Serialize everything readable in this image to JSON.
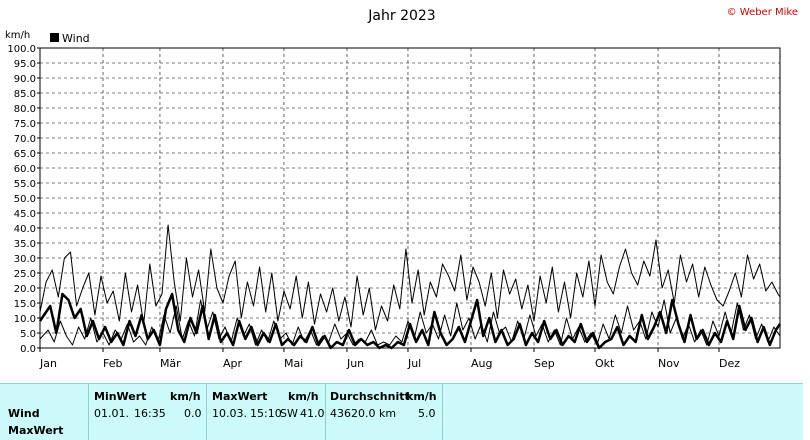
{
  "chart_data": {
    "type": "line",
    "title": "Jahr 2023",
    "credit": "© Weber Mike",
    "ylabel": "km/h",
    "ylim": [
      0,
      100
    ],
    "y_tick_labels": [
      "0.0",
      "5.0",
      "10.0",
      "15.0",
      "20.0",
      "25.0",
      "30.0",
      "35.0",
      "40.0",
      "45.0",
      "50.0",
      "55.0",
      "60.0",
      "65.0",
      "70.0",
      "75.0",
      "80.0",
      "85.0",
      "90.0",
      "95.0",
      "100.0"
    ],
    "x_tick_labels": [
      "Jan",
      "Feb",
      "Mär",
      "Apr",
      "Mai",
      "Jun",
      "Jul",
      "Aug",
      "Sep",
      "Okt",
      "Nov",
      "Dez"
    ],
    "x_tick_days": [
      1,
      32,
      60,
      91,
      121,
      152,
      182,
      213,
      244,
      274,
      305,
      335
    ],
    "xlim_days": [
      1,
      365
    ],
    "grid": true,
    "legend_position": "top-left",
    "series": [
      {
        "name": "Wind",
        "style": "thick",
        "color": "#000000",
        "x_days": [
          1,
          6,
          9,
          12,
          15,
          18,
          21,
          24,
          27,
          30,
          33,
          36,
          39,
          42,
          45,
          48,
          51,
          54,
          57,
          60,
          63,
          66,
          69,
          72,
          75,
          78,
          81,
          84,
          87,
          90,
          93,
          96,
          99,
          102,
          105,
          108,
          111,
          114,
          117,
          120,
          123,
          126,
          129,
          132,
          135,
          138,
          141,
          144,
          147,
          150,
          153,
          156,
          159,
          162,
          165,
          168,
          171,
          174,
          177,
          180,
          183,
          186,
          189,
          192,
          195,
          198,
          201,
          204,
          207,
          210,
          213,
          216,
          219,
          222,
          225,
          228,
          231,
          234,
          237,
          240,
          243,
          246,
          249,
          252,
          255,
          258,
          261,
          264,
          267,
          270,
          273,
          276,
          279,
          282,
          285,
          288,
          291,
          294,
          297,
          300,
          303,
          306,
          309,
          312,
          315,
          318,
          321,
          324,
          327,
          330,
          333,
          336,
          339,
          342,
          345,
          348,
          351,
          354,
          357,
          360,
          363,
          365
        ],
        "values": [
          9,
          14,
          5,
          18,
          16,
          10,
          13,
          4,
          9,
          3,
          7,
          2,
          5,
          1,
          9,
          4,
          11,
          3,
          6,
          1,
          13,
          18,
          6,
          2,
          10,
          5,
          14,
          3,
          11,
          2,
          5,
          1,
          9,
          3,
          7,
          1,
          5,
          2,
          8,
          1,
          3,
          1,
          4,
          2,
          7,
          1,
          4,
          0,
          2,
          1,
          6,
          1,
          3,
          1,
          2,
          0,
          1,
          0,
          2,
          1,
          8,
          2,
          6,
          1,
          12,
          5,
          1,
          3,
          7,
          2,
          9,
          16,
          4,
          10,
          2,
          6,
          1,
          3,
          8,
          1,
          5,
          2,
          9,
          3,
          6,
          1,
          4,
          2,
          8,
          2,
          5,
          0,
          2,
          3,
          7,
          1,
          4,
          2,
          11,
          3,
          7,
          12,
          5,
          16,
          8,
          2,
          11,
          3,
          6,
          1,
          5,
          2,
          9,
          3,
          14,
          6,
          10,
          2,
          7,
          1,
          6,
          8
        ]
      },
      {
        "name": "MaxWert",
        "style": "thin",
        "color": "#000000",
        "x_days": [
          1,
          4,
          7,
          10,
          13,
          16,
          19,
          22,
          25,
          28,
          31,
          34,
          37,
          40,
          43,
          46,
          49,
          52,
          55,
          58,
          61,
          64,
          67,
          70,
          73,
          76,
          79,
          82,
          85,
          88,
          91,
          94,
          97,
          100,
          103,
          106,
          109,
          112,
          115,
          118,
          121,
          124,
          127,
          130,
          133,
          136,
          139,
          142,
          145,
          148,
          151,
          154,
          157,
          160,
          163,
          166,
          169,
          172,
          175,
          178,
          181,
          184,
          187,
          190,
          193,
          196,
          199,
          202,
          205,
          208,
          211,
          214,
          217,
          220,
          223,
          226,
          229,
          232,
          235,
          238,
          241,
          244,
          247,
          250,
          253,
          256,
          259,
          262,
          265,
          268,
          271,
          274,
          277,
          280,
          283,
          286,
          289,
          292,
          295,
          298,
          301,
          304,
          307,
          310,
          313,
          316,
          319,
          322,
          325,
          328,
          331,
          334,
          337,
          340,
          343,
          346,
          349,
          352,
          355,
          358,
          361,
          364,
          365
        ],
        "values": [
          12,
          22,
          26,
          17,
          30,
          32,
          14,
          20,
          25,
          11,
          24,
          15,
          19,
          9,
          25,
          12,
          21,
          8,
          28,
          14,
          18,
          41,
          22,
          9,
          30,
          17,
          26,
          12,
          33,
          20,
          15,
          24,
          29,
          10,
          22,
          14,
          27,
          12,
          25,
          9,
          19,
          13,
          24,
          10,
          22,
          8,
          18,
          12,
          20,
          9,
          17,
          7,
          24,
          11,
          20,
          6,
          14,
          9,
          21,
          13,
          33,
          15,
          26,
          11,
          22,
          17,
          28,
          24,
          19,
          31,
          16,
          27,
          22,
          14,
          25,
          10,
          26,
          18,
          23,
          13,
          21,
          9,
          24,
          15,
          27,
          12,
          22,
          10,
          25,
          17,
          29,
          14,
          31,
          22,
          18,
          27,
          33,
          25,
          21,
          29,
          24,
          36,
          20,
          26,
          15,
          31,
          22,
          28,
          17,
          27,
          21,
          16,
          14,
          19,
          25,
          17,
          31,
          23,
          28,
          19,
          22,
          18,
          17
        ]
      },
      {
        "name": "",
        "style": "thin",
        "color": "#000000",
        "x_days": [
          1,
          5,
          8,
          11,
          14,
          17,
          20,
          23,
          26,
          29,
          32,
          35,
          38,
          41,
          44,
          47,
          50,
          53,
          56,
          59,
          62,
          65,
          68,
          71,
          74,
          77,
          80,
          83,
          86,
          89,
          92,
          95,
          98,
          101,
          104,
          107,
          110,
          113,
          116,
          119,
          122,
          125,
          128,
          131,
          134,
          137,
          140,
          143,
          146,
          149,
          152,
          155,
          158,
          161,
          164,
          167,
          170,
          173,
          176,
          179,
          182,
          185,
          188,
          191,
          194,
          197,
          200,
          203,
          206,
          209,
          212,
          215,
          218,
          221,
          224,
          227,
          230,
          233,
          236,
          239,
          242,
          245,
          248,
          251,
          254,
          257,
          260,
          263,
          266,
          269,
          272,
          275,
          278,
          281,
          284,
          287,
          290,
          293,
          296,
          299,
          302,
          305,
          308,
          311,
          314,
          317,
          320,
          323,
          326,
          329,
          332,
          335,
          338,
          341,
          344,
          347,
          350,
          353,
          356,
          359,
          362,
          365
        ],
        "values": [
          3,
          6,
          2,
          9,
          4,
          1,
          7,
          3,
          10,
          2,
          5,
          1,
          6,
          3,
          8,
          2,
          4,
          1,
          7,
          2,
          11,
          5,
          14,
          3,
          9,
          4,
          16,
          6,
          12,
          3,
          7,
          2,
          10,
          4,
          8,
          1,
          6,
          2,
          9,
          3,
          5,
          1,
          7,
          2,
          6,
          1,
          4,
          2,
          8,
          3,
          5,
          1,
          3,
          2,
          6,
          1,
          2,
          1,
          4,
          2,
          9,
          3,
          12,
          5,
          8,
          3,
          11,
          4,
          15,
          6,
          10,
          3,
          8,
          2,
          12,
          5,
          7,
          2,
          9,
          3,
          11,
          4,
          8,
          2,
          6,
          1,
          10,
          3,
          7,
          2,
          5,
          1,
          8,
          3,
          11,
          5,
          14,
          6,
          9,
          3,
          12,
          7,
          16,
          5,
          10,
          3,
          8,
          2,
          6,
          1,
          9,
          4,
          12,
          5,
          15,
          6,
          11,
          3,
          8,
          2,
          7,
          4
        ]
      }
    ]
  },
  "table": {
    "headers": {
      "min_label": "MinWert",
      "min_unit": "km/h",
      "max_label": "MaxWert",
      "max_unit": "km/h",
      "avg_label": "Durchschnitt",
      "avg_unit": "km/h"
    },
    "rows": [
      {
        "label": "Wind",
        "min_date": "01.01.",
        "min_time": "16:35",
        "min_value": "0.0",
        "max_date": "10.03.",
        "max_time": "15:10",
        "max_dir": "SW",
        "max_value": "41.0",
        "distance": "43620.0 km",
        "avg_value": "5.0"
      },
      {
        "label": "MaxWert"
      }
    ]
  }
}
